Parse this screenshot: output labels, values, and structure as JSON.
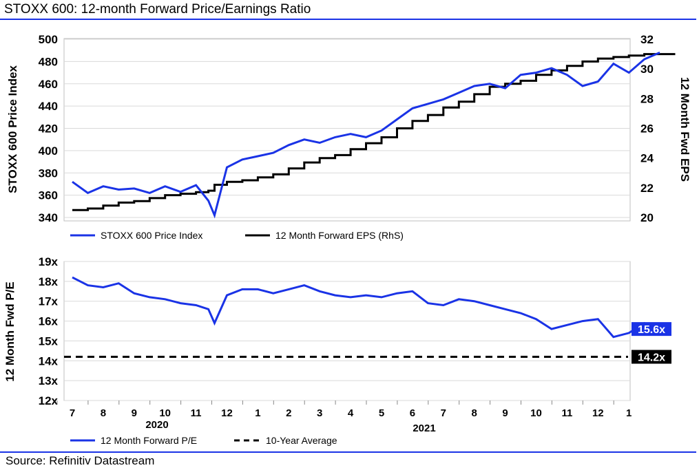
{
  "header": {
    "title": "STOXX 600: 12-month Forward Price/Earnings Ratio"
  },
  "footer": {
    "source": "Source: Refinitiv Datastream"
  },
  "colors": {
    "blue": "#1a33e6",
    "black": "#000000",
    "grid": "#d9d9d9",
    "rule": "#1a33e6",
    "label_dark": "#000000"
  },
  "x_axis": {
    "month_labels": [
      "7",
      "8",
      "9",
      "10",
      "11",
      "12",
      "1",
      "2",
      "3",
      "4",
      "5",
      "6",
      "7",
      "8",
      "9",
      "10",
      "11",
      "12",
      "1"
    ],
    "year_labels": [
      "2020",
      "2021"
    ]
  },
  "chart_data": [
    {
      "type": "line",
      "ylabel": "STOXX 600 Price Index",
      "ylabel_right": "12 Month Fwd EPS",
      "ylim": [
        340,
        500
      ],
      "ylim_right": [
        20,
        32
      ],
      "yticks": [
        "340",
        "360",
        "380",
        "400",
        "420",
        "440",
        "460",
        "480",
        "500"
      ],
      "yticks_right": [
        "20",
        "22",
        "24",
        "26",
        "28",
        "30",
        "32"
      ],
      "grid": true,
      "legend_position": "bottom",
      "x_months": [
        0,
        0.5,
        1,
        1.5,
        2,
        2.5,
        3,
        3.5,
        4,
        4.4,
        4.6,
        5,
        5.5,
        6,
        6.5,
        7,
        7.5,
        8,
        8.5,
        9,
        9.5,
        10,
        10.5,
        11,
        11.5,
        12,
        12.5,
        13,
        13.5,
        14,
        14.5,
        15,
        15.5,
        16,
        16.5,
        17,
        17.5,
        18,
        18.5,
        19
      ],
      "series": [
        {
          "name": "STOXX 600 Price Index",
          "axis": "left",
          "values": [
            372,
            362,
            368,
            365,
            366,
            362,
            368,
            363,
            369,
            355,
            342,
            385,
            392,
            395,
            398,
            405,
            410,
            407,
            412,
            415,
            412,
            418,
            428,
            438,
            442,
            446,
            452,
            458,
            460,
            456,
            468,
            470,
            474,
            468,
            458,
            462,
            478,
            470,
            482,
            488
          ]
        },
        {
          "name": "12 Month Forward EPS (RhS)",
          "axis": "right",
          "values": [
            20.5,
            20.6,
            20.8,
            21.0,
            21.1,
            21.3,
            21.5,
            21.6,
            21.7,
            21.8,
            22.2,
            22.4,
            22.5,
            22.7,
            22.9,
            23.3,
            23.7,
            24.0,
            24.2,
            24.6,
            25.0,
            25.4,
            26.0,
            26.5,
            26.9,
            27.4,
            27.8,
            28.3,
            28.8,
            29.0,
            29.2,
            29.6,
            29.9,
            30.2,
            30.5,
            30.7,
            30.8,
            30.9,
            31.0,
            31.0
          ]
        }
      ]
    },
    {
      "type": "line",
      "ylabel": "12 Month Fwd P/E",
      "ylim": [
        12,
        19
      ],
      "yticks": [
        "12x",
        "13x",
        "14x",
        "15x",
        "16x",
        "17x",
        "18x",
        "19x"
      ],
      "grid": true,
      "legend_position": "bottom",
      "x_months": [
        0,
        0.5,
        1,
        1.5,
        2,
        2.5,
        3,
        3.5,
        4,
        4.4,
        4.6,
        5,
        5.5,
        6,
        6.5,
        7,
        7.5,
        8,
        8.5,
        9,
        9.5,
        10,
        10.5,
        11,
        11.5,
        12,
        12.5,
        13,
        13.5,
        14,
        14.5,
        15,
        15.5,
        16,
        16.5,
        17,
        17.5,
        18,
        18.5,
        19
      ],
      "series": [
        {
          "name": "12 Month Forward P/E",
          "values": [
            18.2,
            17.8,
            17.7,
            17.9,
            17.4,
            17.2,
            17.1,
            16.9,
            16.8,
            16.6,
            15.9,
            17.3,
            17.6,
            17.6,
            17.4,
            17.6,
            17.8,
            17.5,
            17.3,
            17.2,
            17.3,
            17.2,
            17.4,
            17.5,
            16.9,
            16.8,
            17.1,
            17.0,
            16.8,
            16.6,
            16.4,
            16.1,
            15.6,
            15.8,
            16.0,
            16.1,
            15.2,
            15.4,
            15.9,
            15.6
          ],
          "end_label": "15.6x"
        },
        {
          "name": "10-Year Average",
          "value": 14.2,
          "end_label": "14.2x"
        }
      ]
    }
  ]
}
